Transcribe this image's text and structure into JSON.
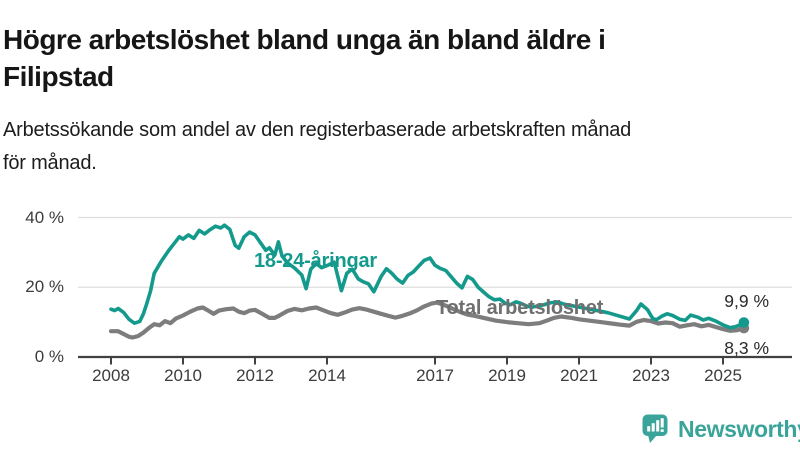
{
  "header": {
    "title": "Högre arbetslöshet bland unga än bland äldre i\nFilipstad",
    "subtitle": "Arbetssökande som andel av den registerbaserade arbetskraften månad\nför månad."
  },
  "chart_data": {
    "type": "line",
    "unit": "%",
    "grid": "horizontal",
    "legend": "inline-labels",
    "colors": {
      "grid": "#dedede",
      "axis": "#414141"
    },
    "ylim": [
      0,
      46
    ],
    "y_ticks": [
      {
        "value": 0,
        "label": "0 %"
      },
      {
        "value": 20,
        "label": "20 %"
      },
      {
        "value": 40,
        "label": "40 %"
      }
    ],
    "x_ticks": [
      {
        "year": 2008,
        "label": "2008"
      },
      {
        "year": 2010,
        "label": "2010"
      },
      {
        "year": 2012,
        "label": "2012"
      },
      {
        "year": 2014,
        "label": "2014"
      },
      {
        "year": 2017,
        "label": "2017"
      },
      {
        "year": 2019,
        "label": "2019"
      },
      {
        "year": 2021,
        "label": "2021"
      },
      {
        "year": 2023,
        "label": "2023"
      },
      {
        "year": 2025,
        "label": "2025"
      }
    ],
    "series": [
      {
        "name": "18-24-åringar",
        "color": "#149a8c",
        "end_label": "9,9 %",
        "end_value": 9.9,
        "points": [
          [
            2008.0,
            13.7
          ],
          [
            2008.1,
            13.3
          ],
          [
            2008.2,
            13.9
          ],
          [
            2008.35,
            12.8
          ],
          [
            2008.5,
            10.8
          ],
          [
            2008.65,
            9.7
          ],
          [
            2008.8,
            10.2
          ],
          [
            2008.9,
            12.4
          ],
          [
            2009.0,
            15.5
          ],
          [
            2009.1,
            19.0
          ],
          [
            2009.2,
            24.0
          ],
          [
            2009.4,
            27.5
          ],
          [
            2009.6,
            30.5
          ],
          [
            2009.75,
            32.5
          ],
          [
            2009.9,
            34.5
          ],
          [
            2010.0,
            33.8
          ],
          [
            2010.15,
            35.0
          ],
          [
            2010.3,
            34.0
          ],
          [
            2010.45,
            36.3
          ],
          [
            2010.6,
            35.3
          ],
          [
            2010.75,
            36.5
          ],
          [
            2010.9,
            37.5
          ],
          [
            2011.05,
            37.0
          ],
          [
            2011.15,
            37.8
          ],
          [
            2011.3,
            36.6
          ],
          [
            2011.45,
            32.0
          ],
          [
            2011.55,
            31.2
          ],
          [
            2011.7,
            34.5
          ],
          [
            2011.85,
            35.8
          ],
          [
            2012.0,
            35.0
          ],
          [
            2012.15,
            32.8
          ],
          [
            2012.3,
            30.6
          ],
          [
            2012.4,
            31.3
          ],
          [
            2012.55,
            29.2
          ],
          [
            2012.65,
            33.0
          ],
          [
            2012.75,
            29.0
          ],
          [
            2012.9,
            27.0
          ],
          [
            2013.1,
            25.5
          ],
          [
            2013.3,
            23.5
          ],
          [
            2013.42,
            19.6
          ],
          [
            2013.55,
            25.2
          ],
          [
            2013.7,
            26.8
          ],
          [
            2013.85,
            25.6
          ],
          [
            2014.0,
            26.2
          ],
          [
            2014.2,
            27.2
          ],
          [
            2014.4,
            19.0
          ],
          [
            2014.55,
            24.0
          ],
          [
            2014.7,
            25.2
          ],
          [
            2014.87,
            22.4
          ],
          [
            2015.0,
            21.6
          ],
          [
            2015.15,
            21.0
          ],
          [
            2015.3,
            18.7
          ],
          [
            2015.5,
            23.0
          ],
          [
            2015.65,
            25.3
          ],
          [
            2015.8,
            24.0
          ],
          [
            2015.95,
            22.3
          ],
          [
            2016.1,
            21.2
          ],
          [
            2016.25,
            23.4
          ],
          [
            2016.4,
            24.4
          ],
          [
            2016.55,
            26.1
          ],
          [
            2016.7,
            27.7
          ],
          [
            2016.86,
            28.4
          ],
          [
            2017.0,
            26.3
          ],
          [
            2017.15,
            25.4
          ],
          [
            2017.3,
            24.8
          ],
          [
            2017.45,
            23.0
          ],
          [
            2017.6,
            21.2
          ],
          [
            2017.75,
            19.8
          ],
          [
            2017.9,
            23.1
          ],
          [
            2018.05,
            22.2
          ],
          [
            2018.2,
            20.0
          ],
          [
            2018.35,
            18.6
          ],
          [
            2018.5,
            17.3
          ],
          [
            2018.65,
            16.4
          ],
          [
            2018.8,
            16.6
          ],
          [
            2018.95,
            15.4
          ],
          [
            2019.1,
            15.0
          ],
          [
            2019.25,
            15.8
          ],
          [
            2019.4,
            15.3
          ],
          [
            2019.55,
            14.6
          ],
          [
            2019.7,
            14.3
          ],
          [
            2019.85,
            14.6
          ],
          [
            2020.0,
            14.9
          ],
          [
            2020.2,
            15.5
          ],
          [
            2020.4,
            15.8
          ],
          [
            2020.6,
            15.1
          ],
          [
            2020.8,
            14.7
          ],
          [
            2021.0,
            14.3
          ],
          [
            2021.2,
            13.9
          ],
          [
            2021.4,
            13.5
          ],
          [
            2021.6,
            13.1
          ],
          [
            2021.8,
            12.7
          ],
          [
            2022.0,
            12.1
          ],
          [
            2022.2,
            11.5
          ],
          [
            2022.4,
            10.9
          ],
          [
            2022.6,
            13.3
          ],
          [
            2022.72,
            15.2
          ],
          [
            2022.9,
            13.6
          ],
          [
            2023.05,
            11.0
          ],
          [
            2023.15,
            10.7
          ],
          [
            2023.3,
            11.7
          ],
          [
            2023.45,
            12.4
          ],
          [
            2023.6,
            11.9
          ],
          [
            2023.8,
            10.8
          ],
          [
            2023.95,
            10.5
          ],
          [
            2024.1,
            12.0
          ],
          [
            2024.3,
            11.4
          ],
          [
            2024.45,
            10.6
          ],
          [
            2024.6,
            11.1
          ],
          [
            2024.8,
            10.3
          ],
          [
            2025.0,
            9.2
          ],
          [
            2025.2,
            8.4
          ],
          [
            2025.35,
            8.7
          ],
          [
            2025.5,
            9.4
          ],
          [
            2025.58,
            9.9
          ]
        ]
      },
      {
        "name": "Total arbetslöshet",
        "color": "#7d7d7d",
        "end_label": "8,3 %",
        "end_value": 8.3,
        "points": [
          [
            2008.0,
            7.4
          ],
          [
            2008.2,
            7.4
          ],
          [
            2008.35,
            6.6
          ],
          [
            2008.5,
            5.8
          ],
          [
            2008.6,
            5.6
          ],
          [
            2008.75,
            6.0
          ],
          [
            2008.9,
            7.0
          ],
          [
            2009.05,
            8.3
          ],
          [
            2009.2,
            9.4
          ],
          [
            2009.35,
            9.1
          ],
          [
            2009.5,
            10.3
          ],
          [
            2009.65,
            9.7
          ],
          [
            2009.8,
            11.0
          ],
          [
            2010.0,
            11.9
          ],
          [
            2010.2,
            13.0
          ],
          [
            2010.4,
            13.9
          ],
          [
            2010.55,
            14.2
          ],
          [
            2010.7,
            13.3
          ],
          [
            2010.85,
            12.4
          ],
          [
            2011.0,
            13.3
          ],
          [
            2011.2,
            13.7
          ],
          [
            2011.4,
            13.9
          ],
          [
            2011.55,
            13.0
          ],
          [
            2011.7,
            12.6
          ],
          [
            2011.85,
            13.3
          ],
          [
            2012.0,
            13.5
          ],
          [
            2012.2,
            12.4
          ],
          [
            2012.4,
            11.2
          ],
          [
            2012.55,
            11.2
          ],
          [
            2012.7,
            12.0
          ],
          [
            2012.9,
            13.2
          ],
          [
            2013.1,
            13.8
          ],
          [
            2013.3,
            13.4
          ],
          [
            2013.5,
            13.9
          ],
          [
            2013.7,
            14.2
          ],
          [
            2013.9,
            13.4
          ],
          [
            2014.1,
            12.6
          ],
          [
            2014.3,
            12.1
          ],
          [
            2014.5,
            12.8
          ],
          [
            2014.7,
            13.6
          ],
          [
            2014.9,
            14.0
          ],
          [
            2015.1,
            13.6
          ],
          [
            2015.3,
            13.0
          ],
          [
            2015.5,
            12.4
          ],
          [
            2015.7,
            11.8
          ],
          [
            2015.9,
            11.3
          ],
          [
            2016.1,
            11.8
          ],
          [
            2016.3,
            12.5
          ],
          [
            2016.5,
            13.4
          ],
          [
            2016.7,
            14.5
          ],
          [
            2016.9,
            15.3
          ],
          [
            2017.05,
            15.6
          ],
          [
            2017.2,
            15.1
          ],
          [
            2017.35,
            14.5
          ],
          [
            2017.5,
            13.8
          ],
          [
            2017.7,
            12.9
          ],
          [
            2017.9,
            12.2
          ],
          [
            2018.1,
            11.8
          ],
          [
            2018.4,
            11.1
          ],
          [
            2018.7,
            10.4
          ],
          [
            2019.0,
            10.0
          ],
          [
            2019.3,
            9.7
          ],
          [
            2019.6,
            9.4
          ],
          [
            2019.9,
            9.7
          ],
          [
            2020.1,
            10.4
          ],
          [
            2020.3,
            11.2
          ],
          [
            2020.5,
            11.6
          ],
          [
            2020.8,
            11.2
          ],
          [
            2021.0,
            10.8
          ],
          [
            2021.3,
            10.4
          ],
          [
            2021.6,
            10.0
          ],
          [
            2021.9,
            9.6
          ],
          [
            2022.2,
            9.2
          ],
          [
            2022.4,
            9.0
          ],
          [
            2022.6,
            10.1
          ],
          [
            2022.8,
            10.6
          ],
          [
            2023.0,
            10.3
          ],
          [
            2023.2,
            9.6
          ],
          [
            2023.4,
            9.9
          ],
          [
            2023.6,
            9.7
          ],
          [
            2023.8,
            8.7
          ],
          [
            2024.0,
            9.1
          ],
          [
            2024.2,
            9.4
          ],
          [
            2024.4,
            8.8
          ],
          [
            2024.6,
            9.2
          ],
          [
            2024.8,
            8.6
          ],
          [
            2025.0,
            8.0
          ],
          [
            2025.2,
            7.5
          ],
          [
            2025.4,
            7.7
          ],
          [
            2025.58,
            8.3
          ]
        ]
      }
    ]
  },
  "footer": {
    "brand": "Newsworthy",
    "brand_color": "#3ba49a",
    "logo_icon": "speech-bubble-bar-chart"
  }
}
